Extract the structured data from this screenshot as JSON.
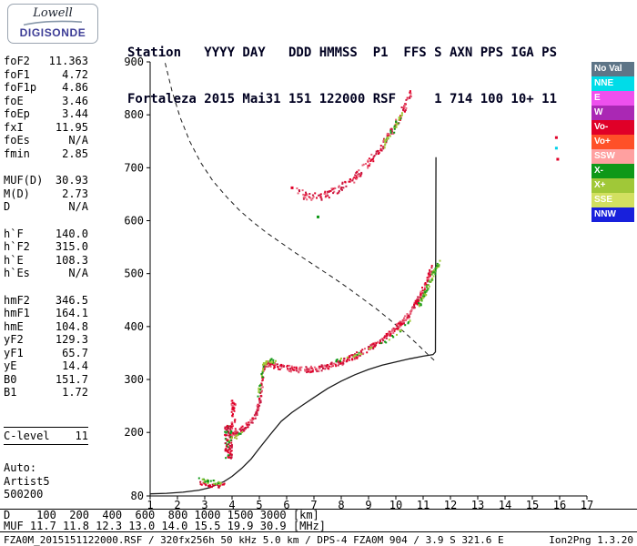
{
  "logo": {
    "line1": "Lowell",
    "line2": "DIGISONDE"
  },
  "header": {
    "line1": "Station   YYYY DAY   DDD HMMSS  P1  FFS S AXN PPS IGA PS",
    "line2": "Fortaleza 2015 Mai31 151 122000 RSF     1 714 100 10+ 11"
  },
  "params": {
    "groups": [
      {
        "name": "frequency-params",
        "rows": [
          [
            "foF2",
            "11.363"
          ],
          [
            "foF1",
            "4.72"
          ],
          [
            "foF1p",
            "4.86"
          ],
          [
            "foE",
            "3.46"
          ],
          [
            "foEp",
            "3.44"
          ],
          [
            "fxI",
            "11.95"
          ],
          [
            "foEs",
            "N/A"
          ],
          [
            "fmin",
            "2.85"
          ]
        ]
      },
      {
        "name": "muf-params",
        "rows": [
          [
            "MUF(D)",
            "30.93"
          ],
          [
            "M(D)",
            "2.73"
          ],
          [
            "D",
            "N/A"
          ]
        ]
      },
      {
        "name": "virtual-height-params",
        "rows": [
          [
            "h`F",
            "140.0"
          ],
          [
            "h`F2",
            "315.0"
          ],
          [
            "h`E",
            "108.3"
          ],
          [
            "h`Es",
            "N/A"
          ]
        ]
      },
      {
        "name": "layer-params",
        "rows": [
          [
            "hmF2",
            "346.5"
          ],
          [
            "hmF1",
            "164.1"
          ],
          [
            "hmE",
            "104.8"
          ],
          [
            "yF2",
            "129.3"
          ],
          [
            "yF1",
            "65.7"
          ],
          [
            "yE",
            "14.4"
          ],
          [
            "B0",
            "151.7"
          ],
          [
            "B1",
            "1.72"
          ]
        ]
      },
      {
        "name": "confidence-level",
        "ruled": true,
        "rows": [
          [
            "C-level",
            "11"
          ]
        ]
      },
      {
        "name": "autoscaling-info",
        "rows": [
          [
            "Auto:",
            ""
          ],
          [
            "Artist5",
            ""
          ],
          [
            "500200",
            ""
          ]
        ]
      }
    ]
  },
  "legend": {
    "items": [
      {
        "label": "No Val",
        "color": "#5e7587"
      },
      {
        "label": "NNE",
        "color": "#00dce8"
      },
      {
        "label": "E",
        "color": "#ee50ee"
      },
      {
        "label": "W",
        "color": "#aa28b4"
      },
      {
        "label": "Vo-",
        "color": "#e00028"
      },
      {
        "label": "Vo+",
        "color": "#ff5028"
      },
      {
        "label": "SSW",
        "color": "#ffa0a0"
      },
      {
        "label": "X-",
        "color": "#0f9818"
      },
      {
        "label": "X+",
        "color": "#a0c838"
      },
      {
        "label": "SSE",
        "color": "#d2e060"
      },
      {
        "label": "NNW",
        "color": "#1820dc"
      }
    ]
  },
  "bottom": {
    "d_row": "D    100  200  400  600  800 1000 1500 3000 [km]",
    "muf_row": "MUF 11.7 11.8 12.3 13.0 14.0 15.5 19.9 30.9 [MHz]",
    "status_left": "FZA0M_2015151122000.RSF / 320fx256h 50 kHz 5.0 km / DPS-4 FZA0M 904 / 3.9 S 321.6 E",
    "status_right": "Ion2Png 1.3.20"
  },
  "chart_data": {
    "type": "scatter",
    "title": "",
    "xlabel": "",
    "ylabel": "",
    "xlim": [
      1,
      17
    ],
    "ylim": [
      80,
      900
    ],
    "x_ticks": [
      1,
      2,
      3,
      4,
      5,
      6,
      7,
      8,
      9,
      10,
      11,
      12,
      13,
      14,
      15,
      16,
      17
    ],
    "y_ticks": [
      80,
      200,
      300,
      400,
      500,
      600,
      700,
      800,
      900
    ],
    "grid": false,
    "series": [
      {
        "name": "true-height-profile",
        "mode": "line",
        "color": "#1a1a1a",
        "width": 1.3,
        "points": [
          [
            1.0,
            84
          ],
          [
            1.6,
            85
          ],
          [
            2.2,
            87
          ],
          [
            2.8,
            91
          ],
          [
            3.2,
            96
          ],
          [
            3.45,
            102
          ],
          [
            3.7,
            107
          ],
          [
            4.0,
            117
          ],
          [
            4.35,
            132
          ],
          [
            4.7,
            150
          ],
          [
            5.0,
            170
          ],
          [
            5.4,
            196
          ],
          [
            5.8,
            221
          ],
          [
            6.2,
            238
          ],
          [
            6.6,
            252
          ],
          [
            7.0,
            266
          ],
          [
            7.5,
            283
          ],
          [
            8.0,
            297
          ],
          [
            8.5,
            309
          ],
          [
            9.0,
            319
          ],
          [
            9.5,
            327
          ],
          [
            10.0,
            333
          ],
          [
            10.5,
            339
          ],
          [
            11.0,
            344
          ],
          [
            11.36,
            347
          ],
          [
            11.45,
            352
          ],
          [
            11.47,
            720
          ]
        ]
      },
      {
        "name": "transmission-curve-dashed",
        "mode": "line",
        "color": "#1a1a1a",
        "width": 1,
        "dash": "5,4",
        "points": [
          [
            1.55,
            898
          ],
          [
            1.8,
            845
          ],
          [
            2.1,
            795
          ],
          [
            2.45,
            750
          ],
          [
            2.85,
            710
          ],
          [
            3.3,
            675
          ],
          [
            3.8,
            645
          ],
          [
            4.3,
            618
          ],
          [
            4.8,
            596
          ],
          [
            5.3,
            576
          ],
          [
            5.8,
            558
          ],
          [
            6.3,
            540
          ],
          [
            6.8,
            523
          ],
          [
            7.3,
            506
          ],
          [
            7.8,
            489
          ],
          [
            8.3,
            471
          ],
          [
            8.8,
            452
          ],
          [
            9.3,
            433
          ],
          [
            9.8,
            412
          ],
          [
            10.3,
            390
          ],
          [
            10.8,
            366
          ],
          [
            11.2,
            346
          ],
          [
            11.45,
            334
          ]
        ]
      },
      {
        "name": "e-layer-o-echoes",
        "mode": "speckle",
        "seed": 11,
        "density": 0.9,
        "width_km": 7,
        "fjitter": 0.1,
        "colors": [
          "#e00028",
          "#c00028"
        ],
        "points": [
          [
            2.72,
            104
          ],
          [
            3.0,
            102
          ],
          [
            3.3,
            100
          ],
          [
            3.55,
            99
          ],
          [
            3.7,
            101
          ]
        ]
      },
      {
        "name": "e-layer-x-echoes",
        "mode": "speckle",
        "seed": 12,
        "density": 1.1,
        "width_km": 7,
        "colors": [
          "#0f9818",
          "#a0c838"
        ],
        "points": [
          [
            2.75,
            111
          ],
          [
            3.05,
            108
          ],
          [
            3.35,
            106
          ],
          [
            3.6,
            105
          ]
        ]
      },
      {
        "name": "f-spread-cluster",
        "mode": "cloud",
        "seed": 21,
        "count": 90,
        "x": [
          3.74,
          4.0
        ],
        "y": [
          150,
          215
        ],
        "colors": [
          "#e00028",
          "#c81840",
          "#0f9818"
        ]
      },
      {
        "name": "f-spread-streak",
        "mode": "cloud",
        "seed": 22,
        "count": 40,
        "x": [
          3.98,
          4.14
        ],
        "y": [
          205,
          265
        ],
        "colors": [
          "#e00028",
          "#e86078"
        ]
      },
      {
        "name": "f-trace-o-mode",
        "mode": "speckle",
        "seed": 31,
        "density": 1.6,
        "width_km": 11,
        "fjitter": 0.07,
        "colors": [
          "#e00028",
          "#c81840",
          "#e86078"
        ],
        "points": [
          [
            3.95,
            193
          ],
          [
            4.15,
            198
          ],
          [
            4.4,
            207
          ],
          [
            4.65,
            218
          ],
          [
            4.85,
            232
          ],
          [
            5.0,
            252
          ],
          [
            5.08,
            282
          ],
          [
            5.15,
            318
          ],
          [
            5.25,
            330
          ],
          [
            5.45,
            328
          ],
          [
            5.7,
            324
          ],
          [
            6.0,
            321
          ],
          [
            6.3,
            319
          ],
          [
            6.6,
            318
          ],
          [
            6.9,
            319
          ],
          [
            7.2,
            321
          ],
          [
            7.5,
            324
          ],
          [
            7.8,
            328
          ],
          [
            8.1,
            334
          ],
          [
            8.4,
            341
          ],
          [
            8.7,
            349
          ],
          [
            9.0,
            358
          ],
          [
            9.3,
            368
          ],
          [
            9.6,
            379
          ],
          [
            9.9,
            392
          ],
          [
            10.15,
            404
          ],
          [
            10.4,
            418
          ],
          [
            10.6,
            432
          ],
          [
            10.8,
            448
          ],
          [
            10.95,
            463
          ],
          [
            11.1,
            480
          ],
          [
            11.2,
            495
          ],
          [
            11.3,
            510
          ]
        ]
      },
      {
        "name": "f-trace-x-start",
        "mode": "speckle",
        "seed": 41,
        "density": 0.8,
        "width_km": 9,
        "colors": [
          "#0f9818",
          "#a0c838"
        ],
        "points": [
          [
            3.9,
            188
          ],
          [
            4.15,
            190
          ],
          [
            4.4,
            200
          ]
        ]
      },
      {
        "name": "f-trace-x-cusp",
        "mode": "speckle",
        "seed": 42,
        "density": 0.9,
        "width_km": 8,
        "colors": [
          "#0f9818",
          "#a0c838"
        ],
        "points": [
          [
            4.95,
            268
          ],
          [
            5.05,
            295
          ],
          [
            5.15,
            328
          ],
          [
            5.4,
            336
          ],
          [
            5.6,
            332
          ]
        ]
      },
      {
        "name": "f-trace-x-upper-edge",
        "mode": "speckle",
        "seed": 43,
        "density": 0.35,
        "width_km": 6,
        "colors": [
          "#0f9818",
          "#a0c838"
        ],
        "points": [
          [
            7.8,
            334
          ],
          [
            8.3,
            342
          ],
          [
            8.8,
            352
          ],
          [
            9.3,
            363
          ],
          [
            9.8,
            378
          ],
          [
            10.3,
            398
          ],
          [
            10.6,
            414
          ]
        ]
      },
      {
        "name": "f-trace-x-top",
        "mode": "speckle",
        "seed": 44,
        "density": 1.4,
        "width_km": 10,
        "fjitter": 0.09,
        "colors": [
          "#0f9818",
          "#a0c838",
          "#56b028"
        ],
        "points": [
          [
            10.85,
            440
          ],
          [
            11.0,
            455
          ],
          [
            11.15,
            472
          ],
          [
            11.3,
            492
          ],
          [
            11.42,
            505
          ],
          [
            11.52,
            515
          ],
          [
            11.58,
            520
          ]
        ]
      },
      {
        "name": "second-order-o-trace",
        "mode": "speckle",
        "seed": 51,
        "density": 1.0,
        "width_km": 16,
        "fjitter": 0.1,
        "colors": [
          "#e00028",
          "#e86078",
          "#c81840"
        ],
        "points": [
          [
            6.35,
            656
          ],
          [
            6.6,
            650
          ],
          [
            6.85,
            646
          ],
          [
            7.1,
            645
          ],
          [
            7.35,
            647
          ],
          [
            7.6,
            651
          ],
          [
            7.85,
            657
          ],
          [
            8.1,
            665
          ],
          [
            8.35,
            675
          ],
          [
            8.6,
            687
          ],
          [
            8.85,
            700
          ],
          [
            9.1,
            714
          ],
          [
            9.35,
            730
          ],
          [
            9.6,
            748
          ],
          [
            9.85,
            768
          ],
          [
            10.1,
            790
          ],
          [
            10.3,
            812
          ],
          [
            10.45,
            828
          ],
          [
            10.55,
            841
          ]
        ]
      },
      {
        "name": "second-order-x-trace",
        "mode": "speckle",
        "seed": 52,
        "density": 0.8,
        "width_km": 12,
        "colors": [
          "#0f9818",
          "#a0c838"
        ],
        "points": [
          [
            9.55,
            742
          ],
          [
            9.75,
            758
          ],
          [
            9.95,
            775
          ],
          [
            10.1,
            790
          ],
          [
            10.25,
            806
          ]
        ]
      },
      {
        "name": "stray-echoes",
        "mode": "dots",
        "points": [
          [
            15.88,
            757,
            "#e00028"
          ],
          [
            15.88,
            737,
            "#00d0e8"
          ],
          [
            15.93,
            716,
            "#e00028"
          ],
          [
            7.15,
            607,
            "#0f9818"
          ],
          [
            6.2,
            662,
            "#e00028"
          ]
        ]
      }
    ]
  }
}
